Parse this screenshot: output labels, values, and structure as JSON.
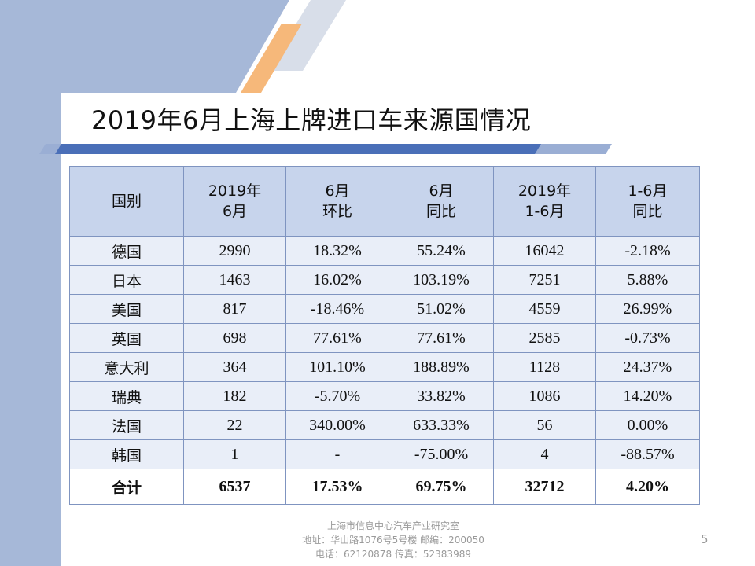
{
  "slide": {
    "title": "2019年6月上海上牌进口车来源国情况",
    "page_number": "5"
  },
  "table": {
    "headers": [
      [
        "国别"
      ],
      [
        "2019年",
        "6月"
      ],
      [
        "6月",
        "环比"
      ],
      [
        "6月",
        "同比"
      ],
      [
        "2019年",
        "1-6月"
      ],
      [
        "1-6月",
        "同比"
      ]
    ],
    "rows": [
      [
        "德国",
        "2990",
        "18.32%",
        "55.24%",
        "16042",
        "-2.18%"
      ],
      [
        "日本",
        "1463",
        "16.02%",
        "103.19%",
        "7251",
        "5.88%"
      ],
      [
        "美国",
        "817",
        "-18.46%",
        "51.02%",
        "4559",
        "26.99%"
      ],
      [
        "英国",
        "698",
        "77.61%",
        "77.61%",
        "2585",
        "-0.73%"
      ],
      [
        "意大利",
        "364",
        "101.10%",
        "188.89%",
        "1128",
        "24.37%"
      ],
      [
        "瑞典",
        "182",
        "-5.70%",
        "33.82%",
        "1086",
        "14.20%"
      ],
      [
        "法国",
        "22",
        "340.00%",
        "633.33%",
        "56",
        "0.00%"
      ],
      [
        "韩国",
        "1",
        "-",
        "-75.00%",
        "4",
        "-88.57%"
      ]
    ],
    "total": [
      "合计",
      "6537",
      "17.53%",
      "69.75%",
      "32712",
      "4.20%"
    ]
  },
  "footer": {
    "line1": "上海市信息中心汽车产业研究室",
    "line2": "地址：华山路1076号5号楼   邮编：200050",
    "line3": "电话：62120878  传真：52383989"
  },
  "colors": {
    "header_fill": "#c7d4ec",
    "row_fill": "#e9eef8",
    "border": "#7f94c0",
    "sidebar": "#a6b8d8",
    "accent_orange": "#f6b87a"
  }
}
